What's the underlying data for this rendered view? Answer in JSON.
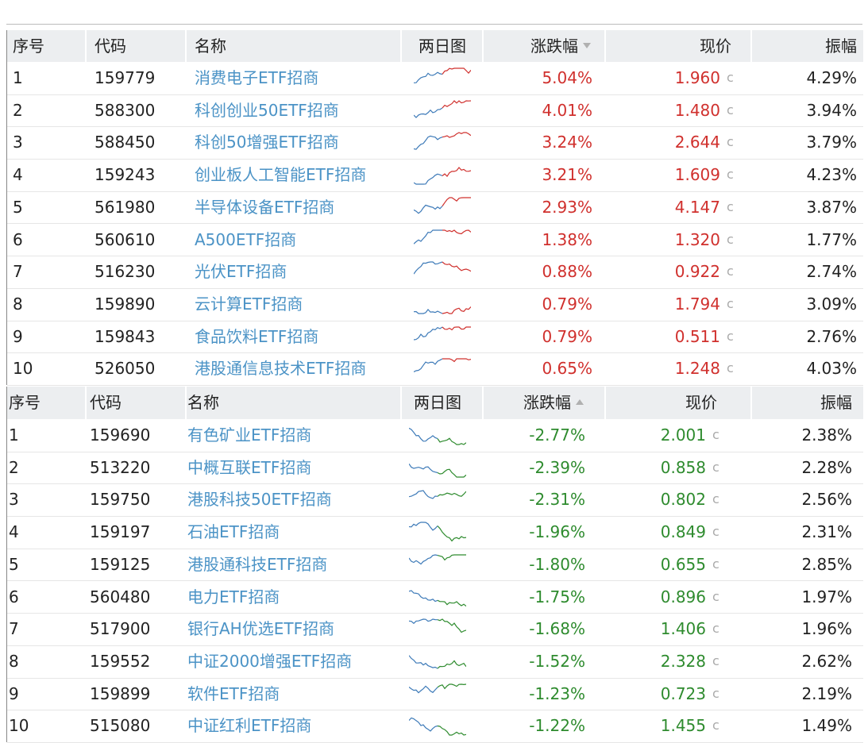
{
  "price_suffix": "c",
  "tables": [
    {
      "header": [
        "序号",
        "代码",
        "名称",
        "两日图",
        "涨跌幅",
        "现价",
        "振幅"
      ],
      "rows": [
        [
          "1",
          "159779",
          "消费电子ETF招商",
          "5.04%",
          "1.960",
          "4.29%"
        ],
        [
          "2",
          "588300",
          "科创创业50ETF招商",
          "4.01%",
          "1.480",
          "3.94%"
        ],
        [
          "3",
          "588450",
          "科创50增强ETF招商",
          "3.24%",
          "2.644",
          "3.79%"
        ],
        [
          "4",
          "159243",
          "创业板人工智能ETF招商",
          "3.21%",
          "1.609",
          "4.23%"
        ],
        [
          "5",
          "561980",
          "半导体设备ETF招商",
          "2.93%",
          "4.147",
          "3.87%"
        ],
        [
          "6",
          "560610",
          "A500ETF招商",
          "1.38%",
          "1.320",
          "1.77%"
        ],
        [
          "7",
          "516230",
          "光伏ETF招商",
          "0.88%",
          "0.922",
          "2.74%"
        ],
        [
          "8",
          "159890",
          "云计算ETF招商",
          "0.79%",
          "1.794",
          "3.09%"
        ],
        [
          "9",
          "159843",
          "食品饮料ETF招商",
          "0.79%",
          "0.511",
          "2.76%"
        ],
        [
          "10",
          "526050",
          "港股通信息技术ETF招商",
          "0.65%",
          "1.248",
          "4.03%"
        ]
      ]
    },
    {
      "header": [
        "序号",
        "代码",
        "名称",
        "两日图",
        "涨跌幅",
        "现价",
        "振幅"
      ],
      "rows": [
        [
          "1",
          "159690",
          "有色矿业ETF招商",
          "-2.77%",
          "2.001",
          "2.38%"
        ],
        [
          "2",
          "513220",
          "中概互联ETF招商",
          "-2.39%",
          "0.858",
          "2.28%"
        ],
        [
          "3",
          "159750",
          "港股科技50ETF招商",
          "-2.31%",
          "0.802",
          "2.56%"
        ],
        [
          "4",
          "159197",
          "石油ETF招商",
          "-1.96%",
          "0.849",
          "2.31%"
        ],
        [
          "5",
          "159125",
          "港股通科技ETF招商",
          "-1.80%",
          "0.655",
          "2.85%"
        ],
        [
          "6",
          "560480",
          "电力ETF招商",
          "-1.75%",
          "0.896",
          "1.97%"
        ],
        [
          "7",
          "517900",
          "银行AH优选ETF招商",
          "-1.68%",
          "1.406",
          "1.96%"
        ],
        [
          "8",
          "159552",
          "中证2000增强ETF招商",
          "-1.52%",
          "2.328",
          "2.62%"
        ],
        [
          "9",
          "159899",
          "软件ETF招商",
          "-1.23%",
          "0.723",
          "2.19%"
        ],
        [
          "10",
          "515080",
          "中证红利ETF招商",
          "-1.22%",
          "1.455",
          "1.49%"
        ]
      ]
    }
  ]
}
